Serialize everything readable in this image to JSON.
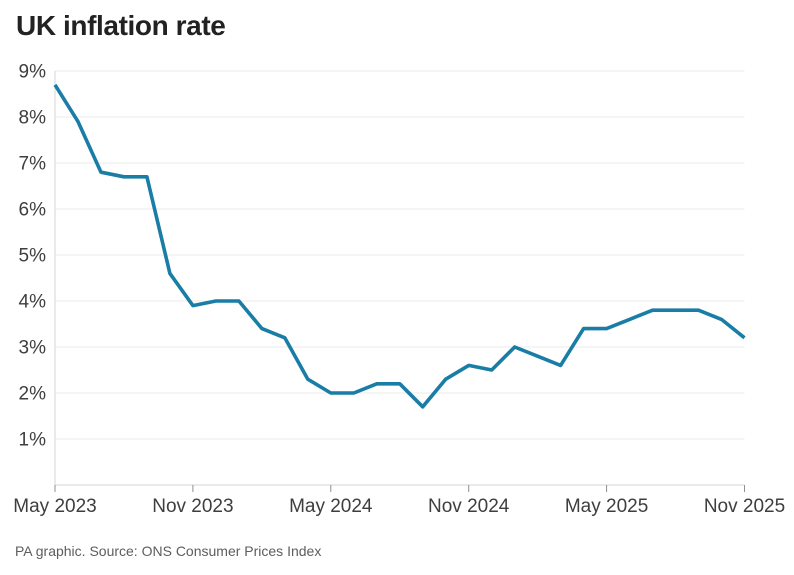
{
  "header": {
    "title": "UK inflation rate"
  },
  "footer": {
    "source": "PA graphic. Source: ONS Consumer Prices Index"
  },
  "chart_data": {
    "type": "line",
    "title": "UK inflation rate",
    "x_start": "May 2023",
    "x_end": "Nov 2025",
    "x_interval": "monthly",
    "series": [
      {
        "name": "UK CPI inflation rate (%)",
        "values": [
          8.7,
          7.9,
          6.8,
          6.7,
          6.7,
          4.6,
          3.9,
          4.0,
          4.0,
          3.4,
          3.2,
          2.3,
          2.0,
          2.0,
          2.2,
          2.2,
          1.7,
          2.3,
          2.6,
          2.5,
          3.0,
          2.8,
          2.6,
          3.4,
          3.4,
          3.6,
          3.8,
          3.8,
          3.8,
          3.6,
          3.2
        ]
      }
    ],
    "x_tick_labels": [
      "May 2023",
      "Nov 2023",
      "May 2024",
      "Nov 2024",
      "May 2025",
      "Nov 2025"
    ],
    "x_tick_indices": [
      0,
      6,
      12,
      18,
      24,
      30
    ],
    "y_ticks": [
      1,
      2,
      3,
      4,
      5,
      6,
      7,
      8,
      9
    ],
    "y_tick_suffix": "%",
    "ylim": [
      0,
      9.3
    ],
    "grid": "horizontal",
    "legend": "none",
    "line_color": "#1a7da6",
    "source": "PA graphic. Source: ONS Consumer Prices Index"
  }
}
